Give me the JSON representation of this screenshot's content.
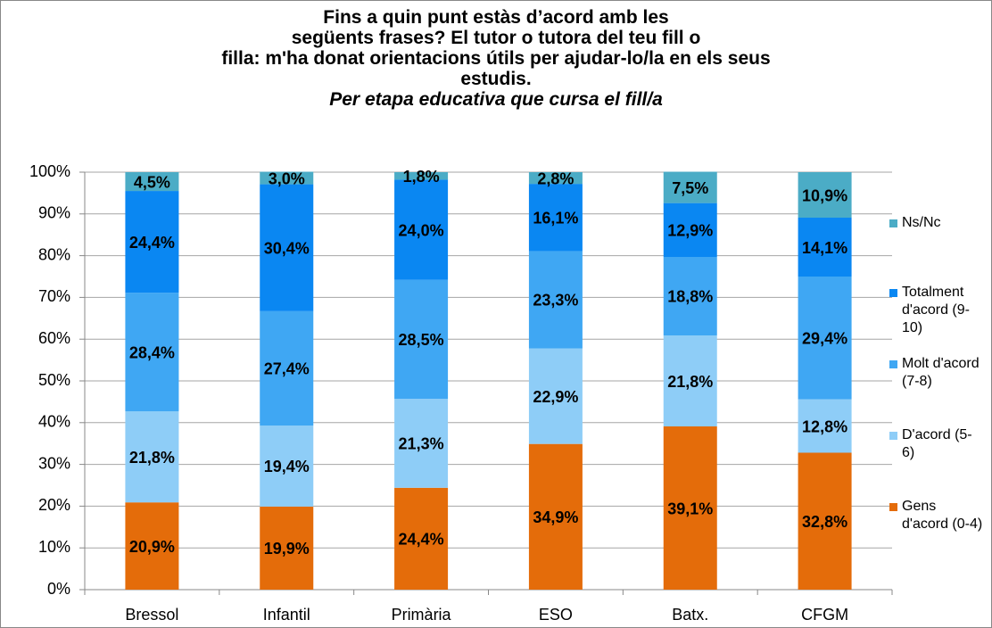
{
  "chart_data": {
    "type": "stacked_bar",
    "title": [
      "Fins a quin punt estàs d’acord amb les",
      "següents frases? El tutor o tutora del teu fill o",
      "filla: m'ha donat orientacions útils per ajudar-lo/la en els seus",
      "estudis."
    ],
    "subtitle": "Per etapa educativa que cursa el fill/a",
    "categories": [
      "Bressol",
      "Infantil",
      "Primària",
      "ESO",
      "Batx.",
      "CFGM"
    ],
    "ylim": [
      0,
      100
    ],
    "yticks": [
      {
        "value": 0,
        "label": "0%"
      },
      {
        "value": 10,
        "label": "10%"
      },
      {
        "value": 20,
        "label": "20%"
      },
      {
        "value": 30,
        "label": "30%"
      },
      {
        "value": 40,
        "label": "40%"
      },
      {
        "value": 50,
        "label": "50%"
      },
      {
        "value": 60,
        "label": "60%"
      },
      {
        "value": 70,
        "label": "70%"
      },
      {
        "value": 80,
        "label": "80%"
      },
      {
        "value": 90,
        "label": "90%"
      },
      {
        "value": 100,
        "label": "100%"
      }
    ],
    "grid": true,
    "legend": "right",
    "series": [
      {
        "name": "Gens d'acord (0-4)",
        "color": "#e46c0a",
        "values": [
          20.9,
          19.9,
          24.4,
          34.9,
          39.1,
          32.8
        ],
        "value_labels": [
          "20,9%",
          "19,9%",
          "24,4%",
          "34,9%",
          "39,1%",
          "32,8%"
        ]
      },
      {
        "name": "D'acord (5-6)",
        "color": "#8ecdf7",
        "values": [
          21.8,
          19.4,
          21.3,
          22.9,
          21.8,
          12.8
        ],
        "value_labels": [
          "21,8%",
          "19,4%",
          "21,3%",
          "22,9%",
          "21,8%",
          "12,8%"
        ]
      },
      {
        "name": "Molt d'acord (7-8)",
        "color": "#3fa7f3",
        "values": [
          28.4,
          27.4,
          28.5,
          23.3,
          18.8,
          29.4
        ],
        "value_labels": [
          "28,4%",
          "27,4%",
          "28,5%",
          "23,3%",
          "18,8%",
          "29,4%"
        ]
      },
      {
        "name": "Totalment d'acord (9-10)",
        "color": "#0a87f2",
        "values": [
          24.4,
          30.4,
          24.0,
          16.1,
          12.9,
          14.1
        ],
        "value_labels": [
          "24,4%",
          "30,4%",
          "24,0%",
          "16,1%",
          "12,9%",
          "14,1%"
        ]
      },
      {
        "name": "Ns/Nc",
        "color": "#4bacc6",
        "values": [
          4.5,
          3.0,
          1.8,
          2.8,
          7.5,
          10.9
        ],
        "value_labels": [
          "4,5%",
          "3,0%",
          "1,8%",
          "2,8%",
          "7,5%",
          "10,9%"
        ]
      }
    ]
  }
}
